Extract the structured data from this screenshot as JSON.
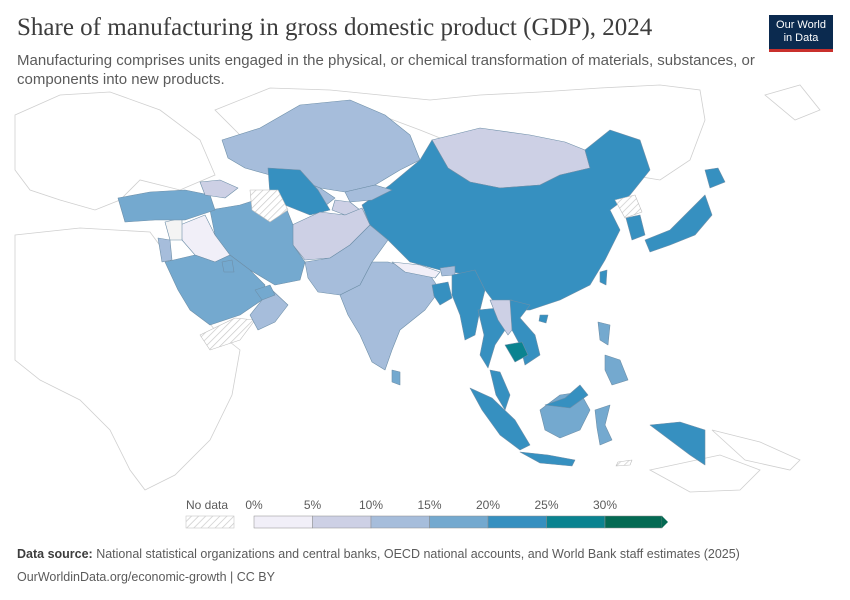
{
  "header": {
    "title": "Share of manufacturing in gross domestic product (GDP), 2024",
    "subtitle": "Manufacturing comprises units engaged in the physical, or chemical transformation of materials, substances, or components into new products.",
    "logo_line1": "Our World",
    "logo_line2": "in Data"
  },
  "legend": {
    "no_data_label": "No data",
    "bins": [
      {
        "label": "0%",
        "color": "#f1eff8"
      },
      {
        "label": "5%",
        "color": "#cdd0e5"
      },
      {
        "label": "10%",
        "color": "#a6bddb"
      },
      {
        "label": "15%",
        "color": "#74a9cf"
      },
      {
        "label": "20%",
        "color": "#3690c0"
      },
      {
        "label": "25%",
        "color": "#0a8390"
      },
      {
        "label": "30%",
        "color": "#046a53"
      }
    ]
  },
  "footer": {
    "source_label": "Data source:",
    "source_text": " National statistical organizations and central banks, OECD national accounts, and World Bank staff estimates (2025)",
    "url": "OurWorldinData.org/economic-growth",
    "license": " | CC BY"
  },
  "colors": {
    "no_data_fill": "#f4f4f4",
    "other_land": "#ffffff",
    "border": "#bdbdbd"
  }
}
